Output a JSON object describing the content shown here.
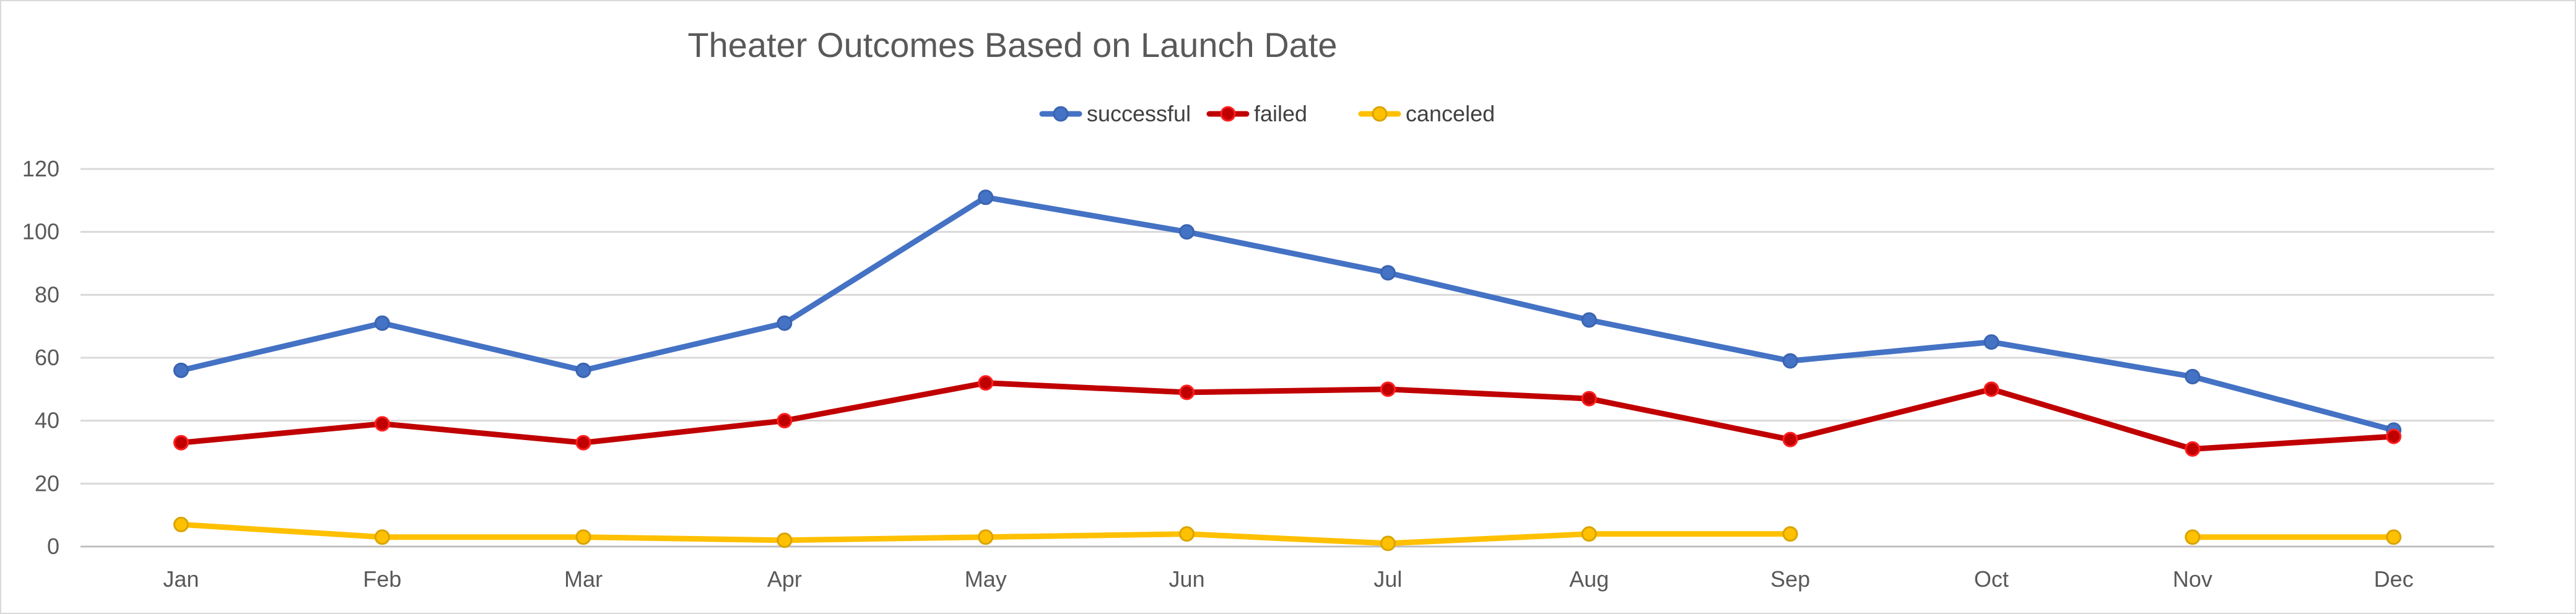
{
  "chart_data": {
    "type": "line",
    "title": "Theater Outcomes Based on Launch Date",
    "xlabel": "",
    "ylabel": "",
    "categories": [
      "Jan",
      "Feb",
      "Mar",
      "Apr",
      "May",
      "Jun",
      "Jul",
      "Aug",
      "Sep",
      "Oct",
      "Nov",
      "Dec"
    ],
    "ylim": [
      0,
      120
    ],
    "yticks": [
      "0",
      "20",
      "40",
      "60",
      "80",
      "100",
      "120"
    ],
    "grid": true,
    "legend_position": "top",
    "series": [
      {
        "name": "successful",
        "color": "#4472C4",
        "values": [
          56,
          71,
          56,
          71,
          111,
          100,
          87,
          72,
          59,
          65,
          54,
          37
        ]
      },
      {
        "name": "failed",
        "color": "#C00000",
        "values": [
          33,
          39,
          33,
          40,
          52,
          49,
          50,
          47,
          34,
          50,
          31,
          35
        ]
      },
      {
        "name": "canceled",
        "color": "#FFC000",
        "values": [
          7,
          3,
          3,
          2,
          3,
          4,
          1,
          4,
          4,
          null,
          3,
          3
        ]
      }
    ]
  }
}
